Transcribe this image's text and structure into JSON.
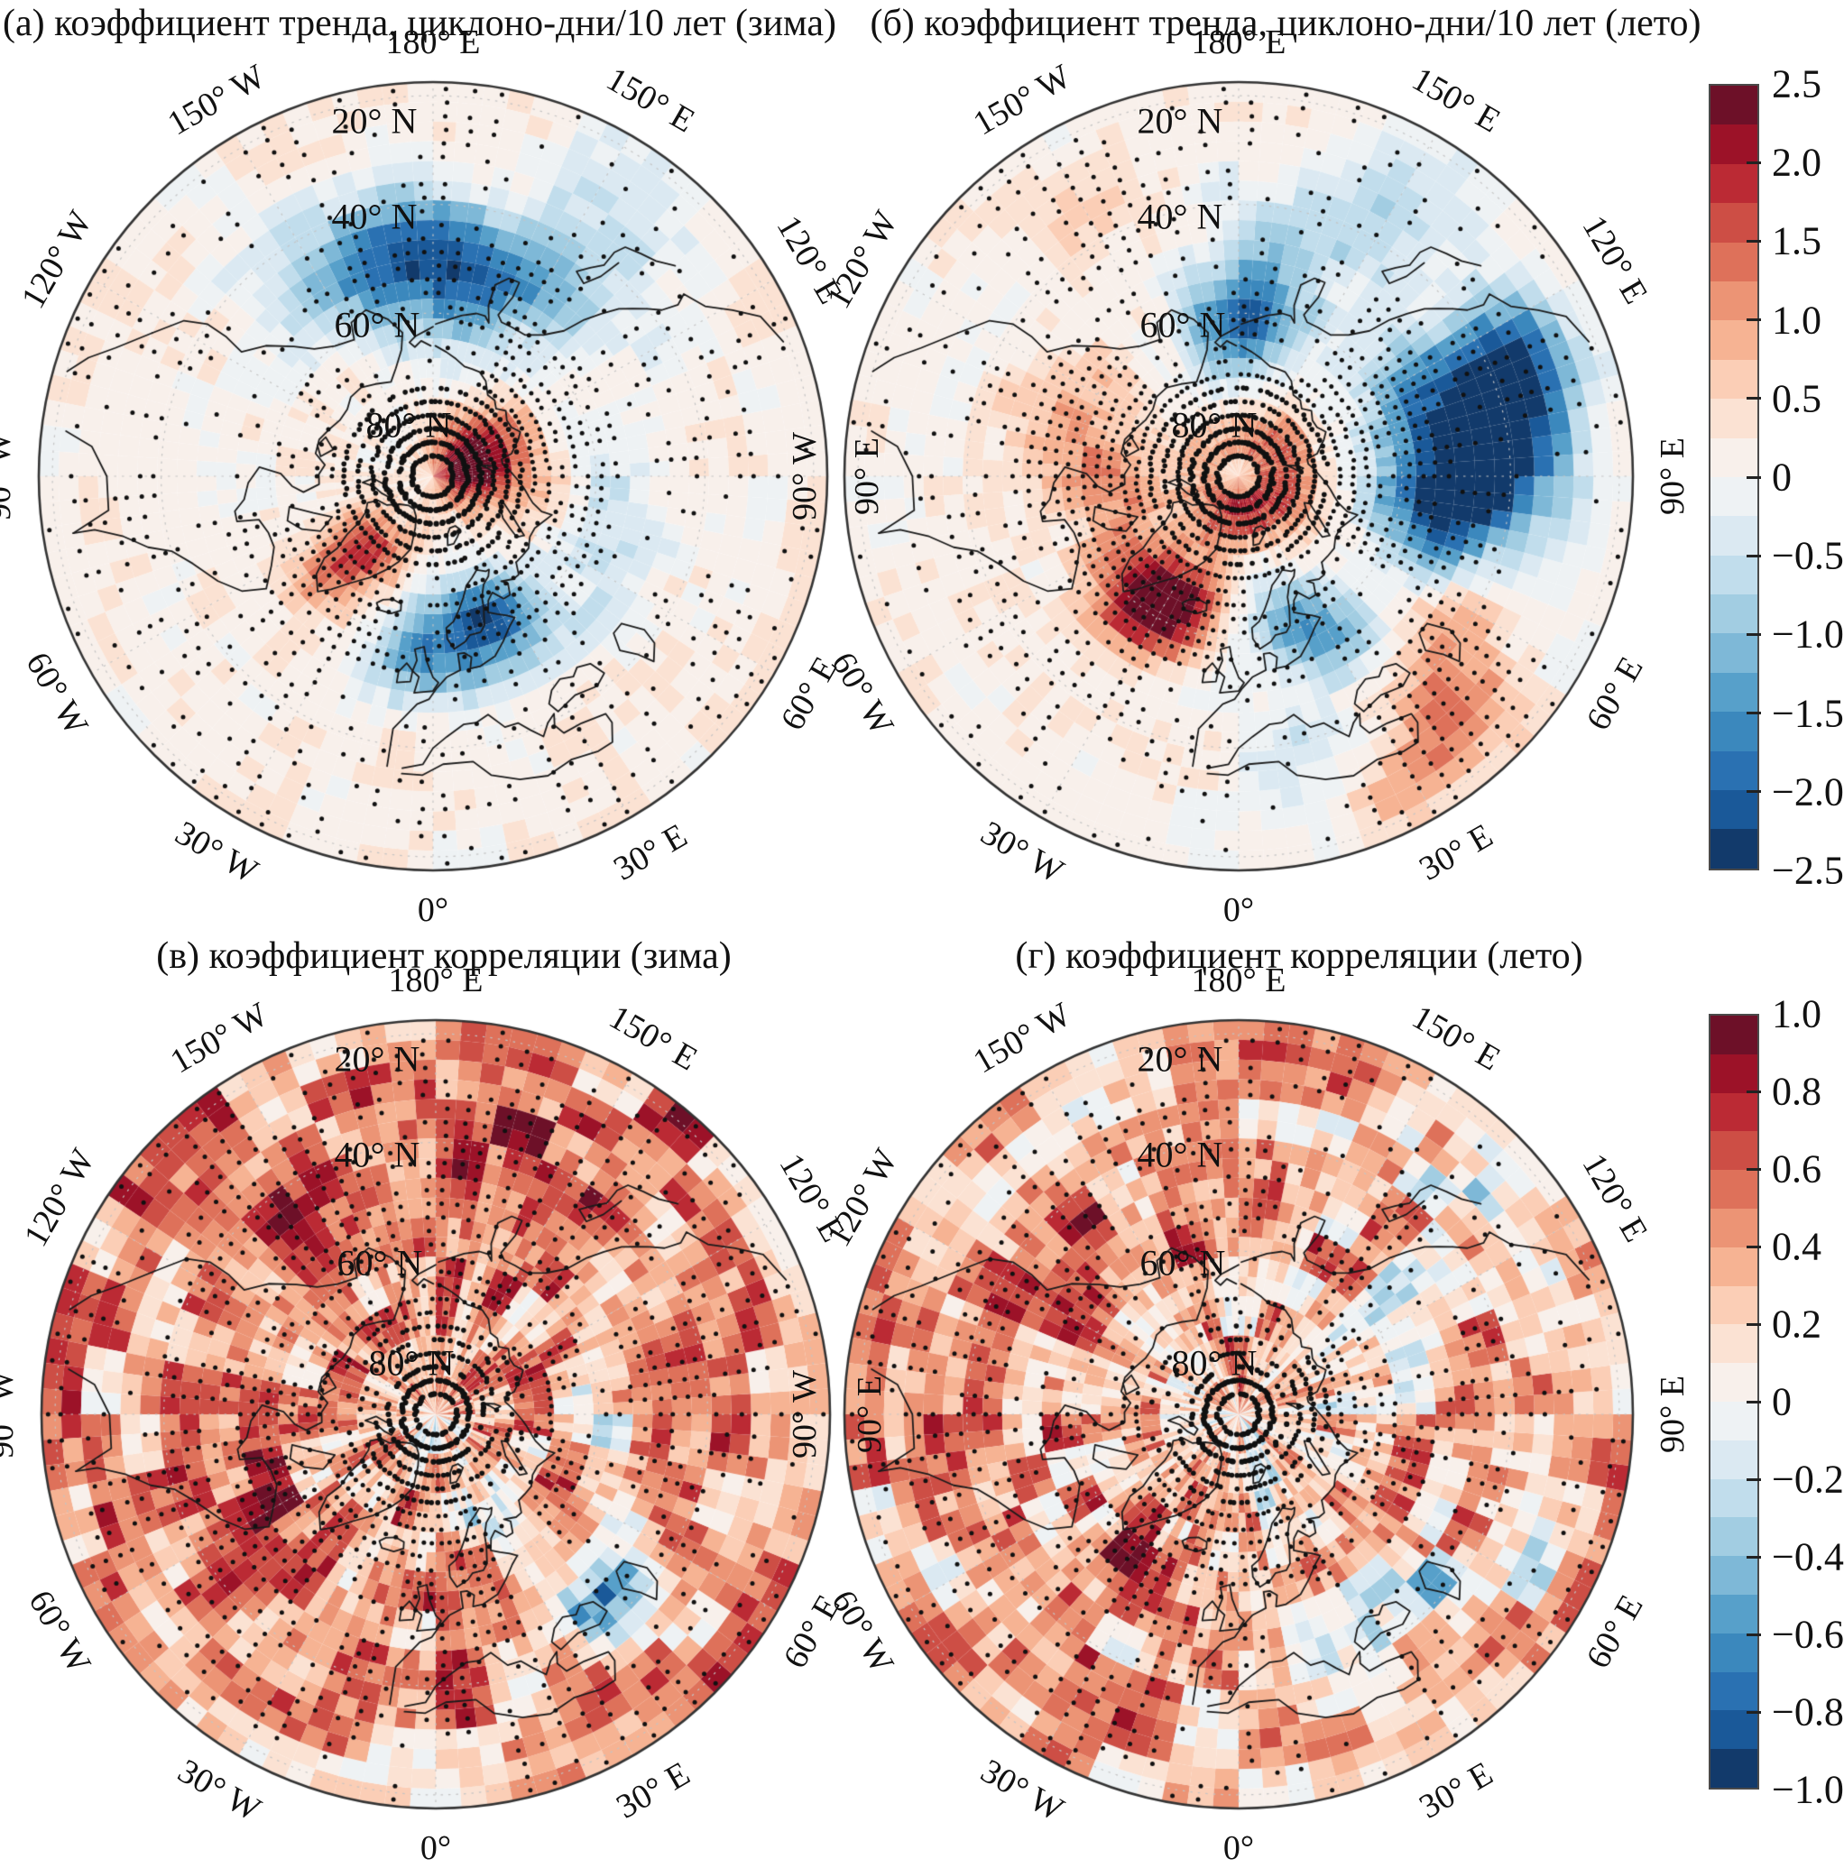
{
  "panels": [
    {
      "key": "a",
      "title": "(а)  коэффициент тренда, циклоно-дни/10 лет (зима)"
    },
    {
      "key": "b",
      "title": "(б) коэффициент тренда, циклоно-дни/10 лет (лето)"
    },
    {
      "key": "v",
      "title": "(в) коэффициент корреляции (зима)"
    },
    {
      "key": "g",
      "title": "(г) коэффициент корреляции (лето)"
    }
  ],
  "axes": {
    "lon_labels": [
      {
        "lon": 180,
        "text": "180° E"
      },
      {
        "lon": 150,
        "text": "150° E"
      },
      {
        "lon": 120,
        "text": "120° E"
      },
      {
        "lon": 90,
        "text": "90° E"
      },
      {
        "lon": 60,
        "text": "60° E"
      },
      {
        "lon": 30,
        "text": "30° E"
      },
      {
        "lon": 0,
        "text": "0°"
      },
      {
        "lon": -30,
        "text": "30° W"
      },
      {
        "lon": -60,
        "text": "60° W"
      },
      {
        "lon": -90,
        "text": "90° W"
      },
      {
        "lon": -120,
        "text": "120° W"
      },
      {
        "lon": -150,
        "text": "150° W"
      }
    ],
    "lat_labels": [
      {
        "lat": 20,
        "text": "20° N"
      },
      {
        "lat": 40,
        "text": "40° N"
      },
      {
        "lat": 60,
        "text": "60° N"
      },
      {
        "lat": 80,
        "text": "80° N"
      }
    ]
  },
  "colorbars": {
    "trend": {
      "vmin": -2.5,
      "vmax": 2.5,
      "levels": 20,
      "ticks": [
        "2.5",
        "2.0",
        "1.5",
        "1.0",
        "0.5",
        "0",
        "−0.5",
        "−1.0",
        "−1.5",
        "−2.0",
        "−2.5"
      ]
    },
    "corr": {
      "vmin": -1.0,
      "vmax": 1.0,
      "levels": 20,
      "ticks": [
        "1.0",
        "0.8",
        "0.6",
        "0.4",
        "0.2",
        "0",
        "−0.2",
        "−0.4",
        "−0.6",
        "−0.8",
        "−1.0"
      ]
    }
  },
  "palette": {
    "rdbu20_neg_to_pos": [
      "#123a6b",
      "#1a5999",
      "#2a71b2",
      "#3b88bd",
      "#57a0ca",
      "#7eb8d7",
      "#a2cde2",
      "#c1ddec",
      "#dbe9f2",
      "#eef2f4",
      "#f8f0eb",
      "#fbe2d3",
      "#fbceb6",
      "#f6b393",
      "#ec9475",
      "#de715a",
      "#cd4e45",
      "#bb2a34",
      "#9c1228",
      "#6d1028"
    ],
    "coast": "#1b1b1b",
    "stipple": "#111111",
    "graticule": "#c4c4c4",
    "rim": "#333333"
  },
  "chart_data": [
    {
      "id": "a",
      "type": "heatmap",
      "title": "(а) коэффициент тренда, циклоно-дни/10 лет (зима)",
      "variable": "коэффициент тренда, циклоно-дни/10 лет",
      "season": "зима",
      "projection": "north-polar-stereographic",
      "lat_range": [
        17.5,
        90
      ],
      "lon_labels_every_deg": 30,
      "colorbar": "trend",
      "value_range": [
        -2.5,
        2.5
      ],
      "base": 0.17,
      "noise": 0.3,
      "features": [
        {
          "lon": -175,
          "lat": 50,
          "amp": -2.0,
          "sigma": 9
        },
        {
          "lon": 160,
          "lat": 52,
          "amp": -1.3,
          "sigma": 9
        },
        {
          "lon": -148,
          "lat": 47,
          "amp": -0.9,
          "sigma": 9
        },
        {
          "lon": 138,
          "lat": 42,
          "amp": -0.7,
          "sigma": 9
        },
        {
          "lon": 105,
          "lat": 84,
          "amp": 1.9,
          "sigma": 5
        },
        {
          "lon": 118,
          "lat": 78,
          "amp": 1.0,
          "sigma": 6
        },
        {
          "lon": 88,
          "lat": 72,
          "amp": 0.6,
          "sigma": 7
        },
        {
          "lon": -40,
          "lat": 73,
          "amp": 1.3,
          "sigma": 5
        },
        {
          "lon": -44,
          "lat": 64,
          "amp": 1.1,
          "sigma": 5
        },
        {
          "lon": 12,
          "lat": 60,
          "amp": -1.6,
          "sigma": 7
        },
        {
          "lon": 27,
          "lat": 62,
          "amp": -1.2,
          "sigma": 6
        },
        {
          "lon": -8,
          "lat": 56,
          "amp": -0.9,
          "sigma": 6
        },
        {
          "lon": 70,
          "lat": 55,
          "amp": -0.6,
          "sigma": 8
        },
        {
          "lon": 45,
          "lat": 52,
          "amp": -0.45,
          "sigma": 6
        },
        {
          "lon": 95,
          "lat": 60,
          "amp": -0.5,
          "sigma": 7
        },
        {
          "lon": 150,
          "lat": 25,
          "amp": -0.4,
          "sigma": 7
        }
      ]
    },
    {
      "id": "b",
      "type": "heatmap",
      "title": "(б) коэффициент тренда, циклоно-дни/10 лет (лето)",
      "variable": "коэффициент тренда, циклоно-дни/10 лет",
      "season": "лето",
      "projection": "north-polar-stereographic",
      "lat_range": [
        17.5,
        90
      ],
      "lon_labels_every_deg": 30,
      "colorbar": "trend",
      "value_range": [
        -2.5,
        2.5
      ],
      "base": 0.1,
      "noise": 0.3,
      "features": [
        {
          "lon": 180,
          "lat": 62,
          "amp": -1.9,
          "sigma": 7
        },
        {
          "lon": 168,
          "lat": 48,
          "amp": -0.9,
          "sigma": 9
        },
        {
          "lon": 150,
          "lat": 32,
          "amp": -0.6,
          "sigma": 8
        },
        {
          "lon": 95,
          "lat": 45,
          "amp": -2.9,
          "sigma": 10
        },
        {
          "lon": 112,
          "lat": 36,
          "amp": -2.0,
          "sigma": 8
        },
        {
          "lon": 78,
          "lat": 54,
          "amp": -1.3,
          "sigma": 8
        },
        {
          "lon": 120,
          "lat": 55,
          "amp": -0.9,
          "sigma": 7
        },
        {
          "lon": -28,
          "lat": 64,
          "amp": 2.6,
          "sigma": 6
        },
        {
          "lon": -42,
          "lat": 58,
          "amp": 1.1,
          "sigma": 6
        },
        {
          "lon": 60,
          "lat": 82,
          "amp": 1.4,
          "sigma": 5
        },
        {
          "lon": 130,
          "lat": 80,
          "amp": 0.9,
          "sigma": 5
        },
        {
          "lon": -25,
          "lat": 82,
          "amp": 0.9,
          "sigma": 5
        },
        {
          "lon": -120,
          "lat": 84,
          "amp": 0.7,
          "sigma": 5
        },
        {
          "lon": 0,
          "lat": 85,
          "amp": 0.8,
          "sigma": 4
        },
        {
          "lon": 170,
          "lat": 83,
          "amp": 0.6,
          "sigma": 4
        },
        {
          "lon": 0,
          "lat": 90,
          "amp": -0.6,
          "sigma": 3
        },
        {
          "lon": 20,
          "lat": 61,
          "amp": -1.5,
          "sigma": 6
        },
        {
          "lon": 35,
          "lat": 54,
          "amp": -0.9,
          "sigma": 5
        },
        {
          "lon": 42,
          "lat": 32,
          "amp": 1.2,
          "sigma": 7
        },
        {
          "lon": 55,
          "lat": 42,
          "amp": 0.8,
          "sigma": 6
        },
        {
          "lon": 28,
          "lat": 25,
          "amp": 0.8,
          "sigma": 6
        },
        {
          "lon": -105,
          "lat": 60,
          "amp": 0.9,
          "sigma": 9
        },
        {
          "lon": -72,
          "lat": 68,
          "amp": 0.8,
          "sigma": 7
        },
        {
          "lon": 15,
          "lat": 38,
          "amp": -0.6,
          "sigma": 7
        },
        {
          "lon": -150,
          "lat": 35,
          "amp": 0.4,
          "sigma": 9
        }
      ]
    },
    {
      "id": "v",
      "type": "heatmap",
      "title": "(в) коэффициент корреляции (зима)",
      "variable": "коэффициент корреляции",
      "season": "зима",
      "projection": "north-polar-stereographic",
      "lat_range": [
        17.5,
        90
      ],
      "lon_labels_every_deg": 30,
      "colorbar": "corr",
      "value_range": [
        -1.0,
        1.0
      ],
      "base": 0.4,
      "noise": 0.52,
      "features": [
        {
          "lon": 45,
          "lat": 43,
          "amp": -0.8,
          "sigma": 5
        },
        {
          "lon": 58,
          "lat": 50,
          "amp": -0.5,
          "sigma": 5
        },
        {
          "lon": 35,
          "lat": 47,
          "amp": -0.5,
          "sigma": 5
        },
        {
          "lon": 25,
          "lat": 70,
          "amp": -0.5,
          "sigma": 4
        },
        {
          "lon": 90,
          "lat": 58,
          "amp": -0.4,
          "sigma": 5
        },
        {
          "lon": 120,
          "lat": 48,
          "amp": -0.35,
          "sigma": 5
        },
        {
          "lon": -60,
          "lat": 52,
          "amp": 0.35,
          "sigma": 8
        },
        {
          "lon": -150,
          "lat": 45,
          "amp": 0.3,
          "sigma": 9
        },
        {
          "lon": 150,
          "lat": 40,
          "amp": 0.35,
          "sigma": 9
        },
        {
          "lon": 170,
          "lat": 25,
          "amp": 0.3,
          "sigma": 8
        },
        {
          "lon": 0,
          "lat": 86,
          "amp": -0.35,
          "sigma": 5
        }
      ]
    },
    {
      "id": "g",
      "type": "heatmap",
      "title": "(г) коэффициент корреляции (лето)",
      "variable": "коэффициент корреляции",
      "season": "лето",
      "projection": "north-polar-stereographic",
      "lat_range": [
        17.5,
        90
      ],
      "lon_labels_every_deg": 30,
      "colorbar": "corr",
      "value_range": [
        -1.0,
        1.0
      ],
      "base": 0.33,
      "noise": 0.52,
      "features": [
        {
          "lon": 42,
          "lat": 44,
          "amp": -0.7,
          "sigma": 6
        },
        {
          "lon": 120,
          "lat": 55,
          "amp": -0.6,
          "sigma": 6
        },
        {
          "lon": 62,
          "lat": 34,
          "amp": -0.5,
          "sigma": 6
        },
        {
          "lon": 135,
          "lat": 30,
          "amp": -0.45,
          "sigma": 5
        },
        {
          "lon": 25,
          "lat": 75,
          "amp": -0.4,
          "sigma": 4
        },
        {
          "lon": -35,
          "lat": 57,
          "amp": 0.45,
          "sigma": 6
        },
        {
          "lon": -140,
          "lat": 50,
          "amp": 0.4,
          "sigma": 8
        },
        {
          "lon": -100,
          "lat": 40,
          "amp": 0.35,
          "sigma": 8
        },
        {
          "lon": 20,
          "lat": 50,
          "amp": -0.35,
          "sigma": 5
        },
        {
          "lon": 0,
          "lat": 87,
          "amp": -0.3,
          "sigma": 5
        },
        {
          "lon": 105,
          "lat": 70,
          "amp": -0.3,
          "sigma": 5
        }
      ]
    }
  ]
}
